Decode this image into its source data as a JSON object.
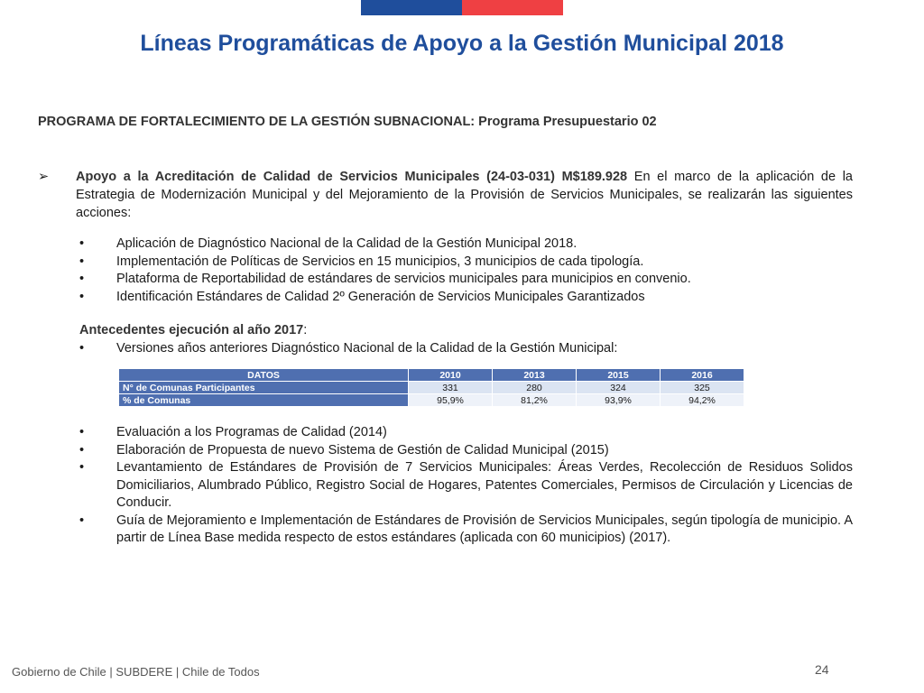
{
  "title": "Líneas Programáticas de Apoyo a la Gestión Municipal 2018",
  "program_heading": "PROGRAMA DE FORTALECIMIENTO DE LA GESTIÓN SUBNACIONAL: Programa Presupuestario 02",
  "main_bullet": {
    "glyph": "➢",
    "bold": "Apoyo a la Acreditación de Calidad de Servicios Municipales (24-03-031) M$189.928",
    "text": " En el marco de la aplicación de la Estrategia de Modernización Municipal y del Mejoramiento de la Provisión de Servicios Municipales, se realizarán las siguientes acciones:"
  },
  "bullet_glyph": "•",
  "actions": [
    "Aplicación de Diagnóstico Nacional de la Calidad de la Gestión Municipal 2018.",
    "Implementación de Políticas de Servicios en 15 municipios, 3 municipios de cada tipología.",
    "Plataforma de Reportabilidad de estándares de servicios municipales para municipios en convenio.",
    "Identificación Estándares de Calidad 2º Generación de Servicios Municipales Garantizados"
  ],
  "antecedentes": {
    "label": "Antecedentes ejecución al año 2017",
    "suffix": ":"
  },
  "antecedentes_items": [
    "Versiones años anteriores Diagnóstico Nacional de la Calidad de la Gestión Municipal:"
  ],
  "table": {
    "headers": [
      "DATOS",
      "2010",
      "2013",
      "2015",
      "2016"
    ],
    "rows": [
      {
        "label": "N° de Comunas Participantes",
        "values": [
          "331",
          "280",
          "324",
          "325"
        ]
      },
      {
        "label": "% de Comunas",
        "values": [
          "95,9%",
          "81,2%",
          "93,9%",
          "94,2%"
        ]
      }
    ]
  },
  "later_items": [
    "Evaluación a los Programas de Calidad (2014)",
    "Elaboración de Propuesta de nuevo Sistema de Gestión de Calidad Municipal (2015)",
    "Levantamiento de Estándares de Provisión de 7 Servicios Municipales: Áreas Verdes, Recolección de Residuos Solidos Domiciliarios, Alumbrado Público, Registro Social de Hogares, Patentes Comerciales, Permisos de Circulación y Licencias de Conducir.",
    "Guía de Mejoramiento e Implementación de Estándares de Provisión de Servicios Municipales, según tipología de municipio. A partir de Línea Base medida respecto de estos estándares (aplicada con 60 municipios) (2017)."
  ],
  "footer": "Gobierno de Chile | SUBDERE | Chile de Todos",
  "page_number": "24",
  "colors": {
    "title_blue": "#1f4e9c",
    "flag_blue": "#1f4e9c",
    "flag_red": "#ef4043",
    "table_header": "#4f6fb0",
    "table_cell": "#dbe4f2"
  }
}
